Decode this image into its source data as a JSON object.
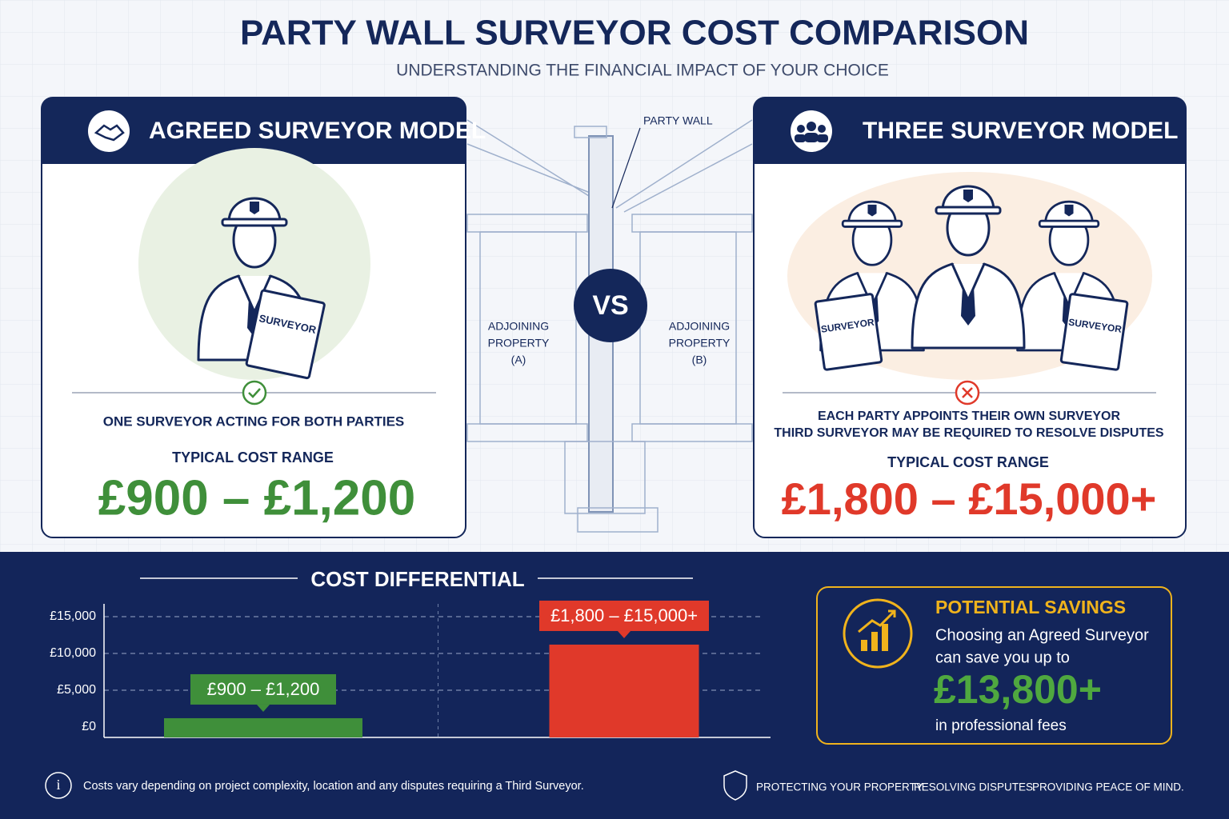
{
  "header": {
    "title": "PARTY WALL SURVEYOR COST COMPARISON",
    "subtitle": "UNDERSTANDING THE FINANCIAL IMPACT OF YOUR CHOICE"
  },
  "cards": [
    {
      "title": "AGREED SURVEYOR MODEL",
      "badges": [
        "SURVEYOR"
      ],
      "description": [
        "ONE SURVEYOR ACTING FOR BOTH PARTIES"
      ],
      "cost_label": "TYPICAL COST RANGE",
      "cost": "£900 – £1,200"
    },
    {
      "title": "THREE SURVEYOR MODEL",
      "badges": [
        "SURVEYOR",
        "SURVEYOR"
      ],
      "description": [
        "EACH PARTY APPOINTS THEIR OWN SURVEYOR",
        "THIRD SURVEYOR MAY BE REQUIRED TO RESOLVE DISPUTES"
      ],
      "cost_label": "TYPICAL COST RANGE",
      "cost": "£1,800 – £15,000+"
    }
  ],
  "diagram": {
    "party_wall": "PARTY WALL",
    "vs": "VS",
    "left": [
      "ADJOINING",
      "PROPERTY",
      "(A)"
    ],
    "right": [
      "ADJOINING",
      "PROPERTY",
      "(B)"
    ]
  },
  "chart_data": {
    "type": "bar",
    "title": "COST DIFFERENTIAL",
    "categories": [
      null,
      null
    ],
    "values": [
      1200,
      11200
    ],
    "colors": [
      "#3f8f3a",
      "#e0392a"
    ],
    "annotations": [
      "£900 – £1,200",
      "£1,800 – £15,000+"
    ],
    "ylim": [
      0,
      15000
    ],
    "yticks": [
      {
        "value": 0,
        "label": "£0"
      },
      {
        "value": 5000,
        "label": "£5,000"
      },
      {
        "value": 10000,
        "label": "£10,000"
      },
      {
        "value": 15000,
        "label": "£15,000"
      }
    ],
    "grid": true
  },
  "savings": {
    "title": "POTENTIAL SAVINGS",
    "text": [
      "Choosing an Agreed Surveyor",
      "can save you up to"
    ],
    "amount": "£13,800+",
    "note": "in professional fees"
  },
  "footer": {
    "info": "Costs vary depending on project complexity, location and any disputes requiring a Third Surveyor.",
    "tagline": [
      "PROTECTING YOUR PROPERTY.",
      "RESOLVING DISPUTES.",
      "PROVIDING PEACE OF MIND."
    ]
  }
}
